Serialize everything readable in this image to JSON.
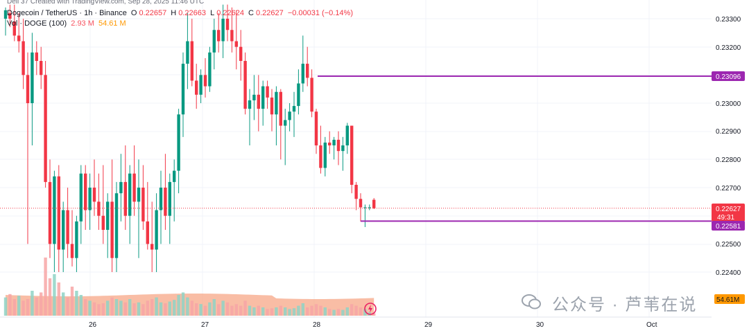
{
  "header": {
    "top_line": "Dell 37 Created with TradingView.com, Sep 28, 2025 11:46 UTC",
    "symbol": "Dogecoin / TetherUS · 1h · Binance",
    "o_label": "O",
    "o_value": "0.22657",
    "h_label": "H",
    "h_value": "0.22663",
    "l_label": "L",
    "l_value": "0.22624",
    "c_label": "C",
    "c_value": "0.22627",
    "change": "−0.00031 (−0.14%)",
    "vol_label": "Vol · DOGE (100)",
    "vol_value": "2.93 M",
    "vol_ma": "54.61 M"
  },
  "watermark": "公众号 · 芦苇在说",
  "colors": {
    "up": "#089981",
    "down": "#f23645",
    "level": "#9c27b0",
    "vol_area": "#f7a17f",
    "grid": "#f0f3fa"
  },
  "icons": {
    "watermark": "wechat-icon",
    "corner": "tradingview-lightning-icon"
  },
  "x_labels": [
    "26",
    "27",
    "28",
    "29",
    "30",
    "Oct"
  ],
  "price_labels": [
    "0.23300",
    "0.23200",
    "0.23000",
    "0.22900",
    "0.22800",
    "0.22700",
    "0.22500",
    "0.22400"
  ],
  "price_tags": {
    "resistance": "0.23096",
    "current": "0.22627",
    "countdown": "49:31",
    "support": "0.22581",
    "volume_ma": "54.61M"
  },
  "chart_data": {
    "type": "candlestick",
    "symbol": "DOGEUSDT",
    "interval": "1h",
    "y_range": [
      0.2242,
      0.2335
    ],
    "x_ticks": [
      "26",
      "27",
      "28",
      "29",
      "30",
      "Oct"
    ],
    "horizontal_levels": [
      0.23096,
      0.22581
    ],
    "last_price": 0.22627,
    "candles": [
      {
        "o": 0.233,
        "h": 0.2334,
        "l": 0.2324,
        "c": 0.2333
      },
      {
        "o": 0.2332,
        "h": 0.2335,
        "l": 0.2327,
        "c": 0.233
      },
      {
        "o": 0.2329,
        "h": 0.2335,
        "l": 0.2322,
        "c": 0.2324
      },
      {
        "o": 0.2324,
        "h": 0.2332,
        "l": 0.2318,
        "c": 0.2322
      },
      {
        "o": 0.2322,
        "h": 0.233,
        "l": 0.2305,
        "c": 0.231
      },
      {
        "o": 0.231,
        "h": 0.2318,
        "l": 0.225,
        "c": 0.23
      },
      {
        "o": 0.23,
        "h": 0.2325,
        "l": 0.2285,
        "c": 0.2318
      },
      {
        "o": 0.2318,
        "h": 0.2322,
        "l": 0.231,
        "c": 0.2315
      },
      {
        "o": 0.2315,
        "h": 0.232,
        "l": 0.2305,
        "c": 0.231
      },
      {
        "o": 0.231,
        "h": 0.2315,
        "l": 0.227,
        "c": 0.2272
      },
      {
        "o": 0.2272,
        "h": 0.228,
        "l": 0.2245,
        "c": 0.225
      },
      {
        "o": 0.225,
        "h": 0.2276,
        "l": 0.224,
        "c": 0.2274
      },
      {
        "o": 0.2274,
        "h": 0.2278,
        "l": 0.224,
        "c": 0.2248
      },
      {
        "o": 0.2248,
        "h": 0.2265,
        "l": 0.224,
        "c": 0.2262
      },
      {
        "o": 0.2262,
        "h": 0.227,
        "l": 0.2245,
        "c": 0.225
      },
      {
        "o": 0.225,
        "h": 0.2262,
        "l": 0.2242,
        "c": 0.2245
      },
      {
        "o": 0.2245,
        "h": 0.226,
        "l": 0.224,
        "c": 0.2258
      },
      {
        "o": 0.2258,
        "h": 0.2278,
        "l": 0.225,
        "c": 0.2275
      },
      {
        "o": 0.2275,
        "h": 0.2278,
        "l": 0.2255,
        "c": 0.2262
      },
      {
        "o": 0.2262,
        "h": 0.2275,
        "l": 0.2255,
        "c": 0.227
      },
      {
        "o": 0.227,
        "h": 0.228,
        "l": 0.226,
        "c": 0.2265
      },
      {
        "o": 0.2265,
        "h": 0.2275,
        "l": 0.2255,
        "c": 0.226
      },
      {
        "o": 0.226,
        "h": 0.2278,
        "l": 0.225,
        "c": 0.2255
      },
      {
        "o": 0.2255,
        "h": 0.2268,
        "l": 0.2245,
        "c": 0.2265
      },
      {
        "o": 0.2265,
        "h": 0.228,
        "l": 0.224,
        "c": 0.2245
      },
      {
        "o": 0.2245,
        "h": 0.2272,
        "l": 0.224,
        "c": 0.2268
      },
      {
        "o": 0.2268,
        "h": 0.2282,
        "l": 0.2258,
        "c": 0.2272
      },
      {
        "o": 0.2272,
        "h": 0.2285,
        "l": 0.2255,
        "c": 0.226
      },
      {
        "o": 0.226,
        "h": 0.2278,
        "l": 0.225,
        "c": 0.2275
      },
      {
        "o": 0.2275,
        "h": 0.2285,
        "l": 0.226,
        "c": 0.2265
      },
      {
        "o": 0.2265,
        "h": 0.228,
        "l": 0.2245,
        "c": 0.227
      },
      {
        "o": 0.227,
        "h": 0.2278,
        "l": 0.2255,
        "c": 0.2258
      },
      {
        "o": 0.2258,
        "h": 0.2272,
        "l": 0.2248,
        "c": 0.225
      },
      {
        "o": 0.225,
        "h": 0.2265,
        "l": 0.224,
        "c": 0.2248
      },
      {
        "o": 0.2248,
        "h": 0.2268,
        "l": 0.224,
        "c": 0.2262
      },
      {
        "o": 0.2262,
        "h": 0.2276,
        "l": 0.225,
        "c": 0.227
      },
      {
        "o": 0.227,
        "h": 0.2282,
        "l": 0.2255,
        "c": 0.226
      },
      {
        "o": 0.226,
        "h": 0.2275,
        "l": 0.225,
        "c": 0.2272
      },
      {
        "o": 0.2272,
        "h": 0.228,
        "l": 0.2258,
        "c": 0.2276
      },
      {
        "o": 0.2276,
        "h": 0.2298,
        "l": 0.2268,
        "c": 0.2296
      },
      {
        "o": 0.2296,
        "h": 0.2318,
        "l": 0.2288,
        "c": 0.2314
      },
      {
        "o": 0.2314,
        "h": 0.2332,
        "l": 0.2305,
        "c": 0.2322
      },
      {
        "o": 0.2322,
        "h": 0.233,
        "l": 0.2306,
        "c": 0.2308
      },
      {
        "o": 0.2308,
        "h": 0.2314,
        "l": 0.2298,
        "c": 0.2303
      },
      {
        "o": 0.2303,
        "h": 0.2312,
        "l": 0.23,
        "c": 0.231
      },
      {
        "o": 0.231,
        "h": 0.2316,
        "l": 0.2302,
        "c": 0.2306
      },
      {
        "o": 0.2306,
        "h": 0.232,
        "l": 0.2304,
        "c": 0.2318
      },
      {
        "o": 0.2318,
        "h": 0.233,
        "l": 0.2312,
        "c": 0.2326
      },
      {
        "o": 0.2326,
        "h": 0.2332,
        "l": 0.2318,
        "c": 0.2322
      },
      {
        "o": 0.2322,
        "h": 0.2335,
        "l": 0.2316,
        "c": 0.233
      },
      {
        "o": 0.233,
        "h": 0.2335,
        "l": 0.2322,
        "c": 0.2326
      },
      {
        "o": 0.2326,
        "h": 0.2334,
        "l": 0.2318,
        "c": 0.2322
      },
      {
        "o": 0.2322,
        "h": 0.2333,
        "l": 0.2312,
        "c": 0.232
      },
      {
        "o": 0.232,
        "h": 0.2326,
        "l": 0.2308,
        "c": 0.2315
      },
      {
        "o": 0.2315,
        "h": 0.2318,
        "l": 0.2296,
        "c": 0.2298
      },
      {
        "o": 0.2298,
        "h": 0.2305,
        "l": 0.2285,
        "c": 0.2301
      },
      {
        "o": 0.2301,
        "h": 0.231,
        "l": 0.2294,
        "c": 0.2303
      },
      {
        "o": 0.2303,
        "h": 0.231,
        "l": 0.229,
        "c": 0.2298
      },
      {
        "o": 0.2298,
        "h": 0.2308,
        "l": 0.2292,
        "c": 0.2306
      },
      {
        "o": 0.2306,
        "h": 0.2308,
        "l": 0.2298,
        "c": 0.2302
      },
      {
        "o": 0.2302,
        "h": 0.2305,
        "l": 0.229,
        "c": 0.2296
      },
      {
        "o": 0.2296,
        "h": 0.2306,
        "l": 0.2285,
        "c": 0.2304
      },
      {
        "o": 0.2304,
        "h": 0.2305,
        "l": 0.228,
        "c": 0.2292
      },
      {
        "o": 0.2292,
        "h": 0.2298,
        "l": 0.2278,
        "c": 0.2294
      },
      {
        "o": 0.2294,
        "h": 0.23,
        "l": 0.229,
        "c": 0.2297
      },
      {
        "o": 0.2297,
        "h": 0.2304,
        "l": 0.2288,
        "c": 0.2299
      },
      {
        "o": 0.2299,
        "h": 0.2312,
        "l": 0.2296,
        "c": 0.2307
      },
      {
        "o": 0.2307,
        "h": 0.2324,
        "l": 0.2304,
        "c": 0.2314
      },
      {
        "o": 0.2314,
        "h": 0.232,
        "l": 0.2306,
        "c": 0.2309
      },
      {
        "o": 0.2309,
        "h": 0.2312,
        "l": 0.2295,
        "c": 0.2297
      },
      {
        "o": 0.2297,
        "h": 0.2298,
        "l": 0.2282,
        "c": 0.2285
      },
      {
        "o": 0.2285,
        "h": 0.2292,
        "l": 0.2275,
        "c": 0.2277
      },
      {
        "o": 0.2277,
        "h": 0.2288,
        "l": 0.2274,
        "c": 0.2286
      },
      {
        "o": 0.2286,
        "h": 0.229,
        "l": 0.2282,
        "c": 0.2285
      },
      {
        "o": 0.2285,
        "h": 0.2288,
        "l": 0.228,
        "c": 0.2287
      },
      {
        "o": 0.2287,
        "h": 0.229,
        "l": 0.2278,
        "c": 0.2283
      },
      {
        "o": 0.2283,
        "h": 0.2288,
        "l": 0.2276,
        "c": 0.2285
      },
      {
        "o": 0.2285,
        "h": 0.2293,
        "l": 0.2282,
        "c": 0.2292
      },
      {
        "o": 0.2292,
        "h": 0.2292,
        "l": 0.2268,
        "c": 0.2271
      },
      {
        "o": 0.2271,
        "h": 0.2272,
        "l": 0.2262,
        "c": 0.2266
      },
      {
        "o": 0.2266,
        "h": 0.2268,
        "l": 0.2258,
        "c": 0.2263
      },
      {
        "o": 0.2263,
        "h": 0.2264,
        "l": 0.2256,
        "c": 0.2263
      },
      {
        "o": 0.2263,
        "h": 0.2264,
        "l": 0.2262,
        "c": 0.2263
      },
      {
        "o": 0.22657,
        "h": 0.22663,
        "l": 0.22624,
        "c": 0.22627
      }
    ],
    "volume": [
      {
        "v": 22,
        "d": 0
      },
      {
        "v": 26,
        "d": 1
      },
      {
        "v": 20,
        "d": 1
      },
      {
        "v": 24,
        "d": 0
      },
      {
        "v": 18,
        "d": 1
      },
      {
        "v": 20,
        "d": 1
      },
      {
        "v": 30,
        "d": 0
      },
      {
        "v": 22,
        "d": 1
      },
      {
        "v": 28,
        "d": 1
      },
      {
        "v": 70,
        "d": 1
      },
      {
        "v": 45,
        "d": 1
      },
      {
        "v": 50,
        "d": 0
      },
      {
        "v": 40,
        "d": 1
      },
      {
        "v": 28,
        "d": 0
      },
      {
        "v": 22,
        "d": 1
      },
      {
        "v": 35,
        "d": 1
      },
      {
        "v": 30,
        "d": 0
      },
      {
        "v": 25,
        "d": 0
      },
      {
        "v": 20,
        "d": 1
      },
      {
        "v": 18,
        "d": 0
      },
      {
        "v": 16,
        "d": 1
      },
      {
        "v": 14,
        "d": 1
      },
      {
        "v": 15,
        "d": 1
      },
      {
        "v": 18,
        "d": 0
      },
      {
        "v": 22,
        "d": 1
      },
      {
        "v": 20,
        "d": 0
      },
      {
        "v": 18,
        "d": 0
      },
      {
        "v": 16,
        "d": 1
      },
      {
        "v": 20,
        "d": 0
      },
      {
        "v": 15,
        "d": 1
      },
      {
        "v": 16,
        "d": 0
      },
      {
        "v": 14,
        "d": 1
      },
      {
        "v": 18,
        "d": 1
      },
      {
        "v": 20,
        "d": 1
      },
      {
        "v": 22,
        "d": 0
      },
      {
        "v": 16,
        "d": 0
      },
      {
        "v": 15,
        "d": 1
      },
      {
        "v": 17,
        "d": 0
      },
      {
        "v": 19,
        "d": 0
      },
      {
        "v": 25,
        "d": 0
      },
      {
        "v": 28,
        "d": 0
      },
      {
        "v": 22,
        "d": 0
      },
      {
        "v": 18,
        "d": 1
      },
      {
        "v": 15,
        "d": 1
      },
      {
        "v": 14,
        "d": 0
      },
      {
        "v": 12,
        "d": 1
      },
      {
        "v": 16,
        "d": 0
      },
      {
        "v": 20,
        "d": 0
      },
      {
        "v": 14,
        "d": 1
      },
      {
        "v": 18,
        "d": 0
      },
      {
        "v": 16,
        "d": 1
      },
      {
        "v": 12,
        "d": 1
      },
      {
        "v": 14,
        "d": 1
      },
      {
        "v": 12,
        "d": 1
      },
      {
        "v": 18,
        "d": 1
      },
      {
        "v": 12,
        "d": 0
      },
      {
        "v": 10,
        "d": 0
      },
      {
        "v": 12,
        "d": 1
      },
      {
        "v": 10,
        "d": 0
      },
      {
        "v": 8,
        "d": 1
      },
      {
        "v": 9,
        "d": 1
      },
      {
        "v": 10,
        "d": 0
      },
      {
        "v": 12,
        "d": 1
      },
      {
        "v": 10,
        "d": 0
      },
      {
        "v": 8,
        "d": 0
      },
      {
        "v": 9,
        "d": 0
      },
      {
        "v": 12,
        "d": 0
      },
      {
        "v": 15,
        "d": 0
      },
      {
        "v": 10,
        "d": 1
      },
      {
        "v": 12,
        "d": 1
      },
      {
        "v": 14,
        "d": 1
      },
      {
        "v": 12,
        "d": 1
      },
      {
        "v": 10,
        "d": 0
      },
      {
        "v": 8,
        "d": 1
      },
      {
        "v": 7,
        "d": 0
      },
      {
        "v": 8,
        "d": 1
      },
      {
        "v": 7,
        "d": 0
      },
      {
        "v": 10,
        "d": 0
      },
      {
        "v": 14,
        "d": 1
      },
      {
        "v": 12,
        "d": 1
      },
      {
        "v": 10,
        "d": 1
      },
      {
        "v": 8,
        "d": 0
      },
      {
        "v": 4,
        "d": 0
      },
      {
        "v": 3,
        "d": 1
      }
    ]
  }
}
